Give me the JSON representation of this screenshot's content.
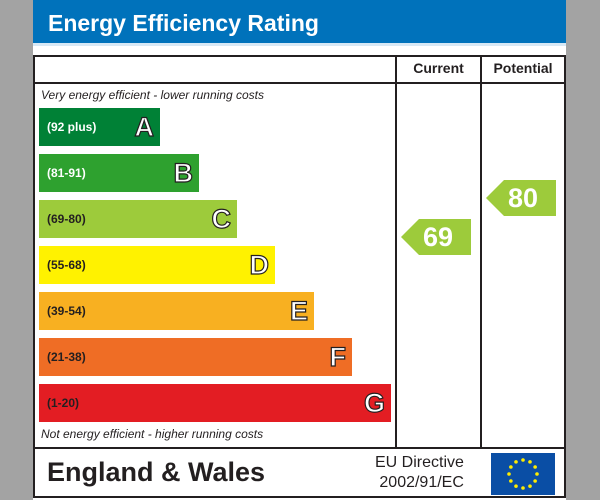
{
  "title": "Energy Efficiency Rating",
  "columns": {
    "current": "Current",
    "potential": "Potential"
  },
  "top_note": "Very energy efficient - lower running costs",
  "bottom_note": "Not energy efficient - higher running costs",
  "bands": [
    {
      "letter": "A",
      "range": "(92 plus)",
      "color": "#008136",
      "text_color": "#ffffff"
    },
    {
      "letter": "B",
      "range": "(81-91)",
      "color": "#2ea12f",
      "text_color": "#ffffff"
    },
    {
      "letter": "C",
      "range": "(69-80)",
      "color": "#9dcb3b",
      "text_color": "#231f20"
    },
    {
      "letter": "D",
      "range": "(55-68)",
      "color": "#fff200",
      "text_color": "#231f20"
    },
    {
      "letter": "E",
      "range": "(39-54)",
      "color": "#f8b021",
      "text_color": "#231f20"
    },
    {
      "letter": "F",
      "range": "(21-38)",
      "color": "#ef6d25",
      "text_color": "#231f20"
    },
    {
      "letter": "G",
      "range": "(1-20)",
      "color": "#e31d23",
      "text_color": "#231f20"
    }
  ],
  "current": {
    "value": "69",
    "band": "C",
    "color": "#9dcb3b"
  },
  "potential": {
    "value": "80",
    "band": "C",
    "color": "#9dcb3b"
  },
  "footer": {
    "region": "England & Wales",
    "directive_line1": "EU Directive",
    "directive_line2": "2002/91/EC",
    "flag_icon": "eu-flag-icon"
  }
}
